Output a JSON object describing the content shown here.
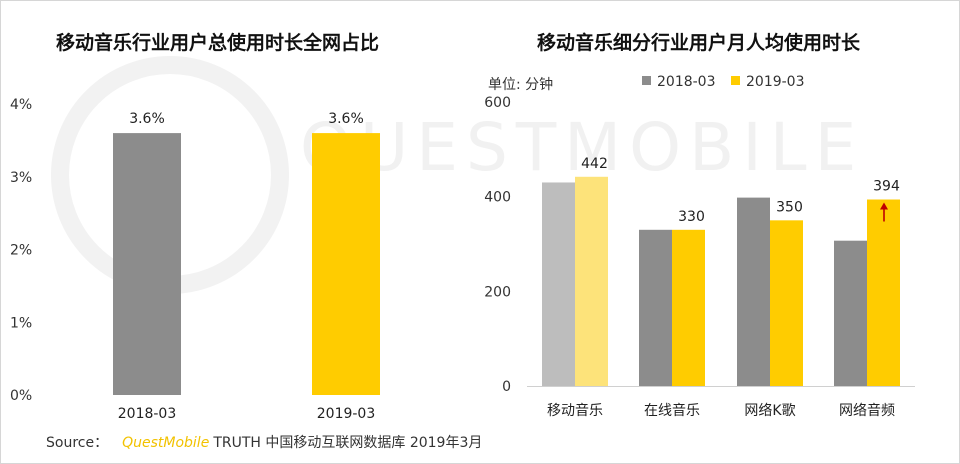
{
  "left_chart_title": "移动音乐行业用户总使用时长全网占比",
  "right_chart_title": "移动音乐细分行业用户月人均使用时长",
  "unit_label": "单位: 分钟",
  "watermark": "QUESTMOBILE",
  "source": {
    "label": "Source：",
    "brand": "QuestMobile",
    "text": "TRUTH 中国移动互联网数据库 2019年3月"
  },
  "colors": {
    "gray": "#8c8c8c",
    "yellow": "#ffcc00",
    "light_gray": "#bdbdbd",
    "light_yellow": "#fde37a",
    "arrow": "#c00000"
  },
  "chart_data": [
    {
      "type": "bar",
      "title": "移动音乐行业用户总使用时长全网占比",
      "categories": [
        "2018-03",
        "2019-03"
      ],
      "values": [
        3.6,
        3.6
      ],
      "data_labels": [
        "3.6%",
        "3.6%"
      ],
      "bar_colors": [
        "gray",
        "yellow"
      ],
      "ylim": [
        0,
        4
      ],
      "yticks": [
        "0%",
        "1%",
        "2%",
        "3%",
        "4%"
      ],
      "grid": false,
      "legend": "none"
    },
    {
      "type": "bar",
      "title": "移动音乐细分行业用户月人均使用时长",
      "unit": "单位: 分钟",
      "categories": [
        "移动音乐",
        "在线音乐",
        "网络K歌",
        "网络音频"
      ],
      "series": [
        {
          "name": "2018-03",
          "color": "gray",
          "values": [
            430,
            330,
            398,
            307
          ],
          "labels": [
            "",
            "",
            "",
            ""
          ]
        },
        {
          "name": "2019-03",
          "color": "yellow",
          "values": [
            442,
            330,
            350,
            394
          ],
          "labels": [
            "442",
            "330",
            "350",
            "394"
          ]
        }
      ],
      "highlight": {
        "category": "移动音乐",
        "style": "faded"
      },
      "arrow_category": "网络音频",
      "ylim": [
        0,
        600
      ],
      "yticks": [
        "0",
        "200",
        "400",
        "600"
      ],
      "grid": false,
      "legend": "top"
    }
  ]
}
